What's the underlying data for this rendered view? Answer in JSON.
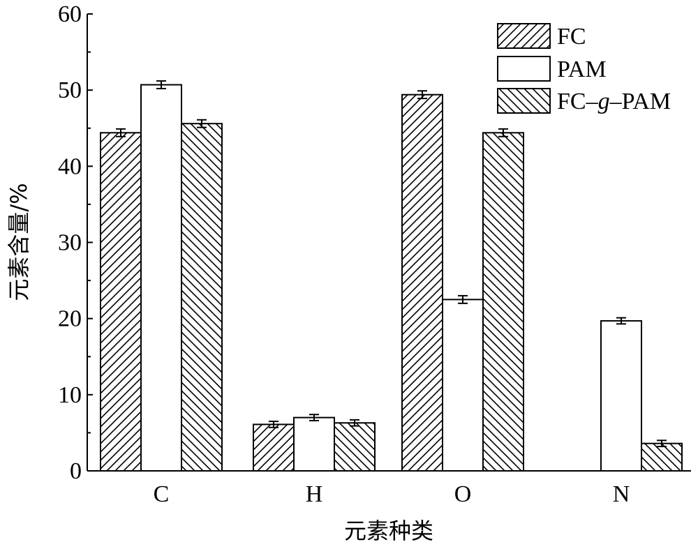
{
  "chart_data": {
    "type": "bar",
    "xlabel": "元素种类",
    "ylabel": "元素含量/%",
    "categories": [
      "C",
      "H",
      "O",
      "N"
    ],
    "ylim": [
      0,
      60
    ],
    "yticks": [
      0,
      10,
      20,
      30,
      40,
      50,
      60
    ],
    "grid": false,
    "legend_position": "top-right",
    "error_bars": true,
    "series": [
      {
        "name": "FC",
        "pattern": "diagonal-forward",
        "values": [
          44.4,
          6.1,
          49.4,
          0
        ],
        "errors": [
          0.5,
          0.4,
          0.5,
          0
        ]
      },
      {
        "name": "PAM",
        "pattern": "none",
        "values": [
          50.7,
          7.0,
          22.5,
          19.7
        ],
        "errors": [
          0.5,
          0.4,
          0.5,
          0.4
        ]
      },
      {
        "name": "FC–g–PAM",
        "pattern": "diagonal-backward",
        "values": [
          45.6,
          6.3,
          44.4,
          3.6
        ],
        "errors": [
          0.5,
          0.4,
          0.5,
          0.4
        ]
      }
    ],
    "legend_labels": {
      "prefix": "FC–",
      "italic": "g",
      "suffix": "–PAM"
    },
    "colors": {
      "stroke": "#000000",
      "fill": "#ffffff"
    }
  }
}
